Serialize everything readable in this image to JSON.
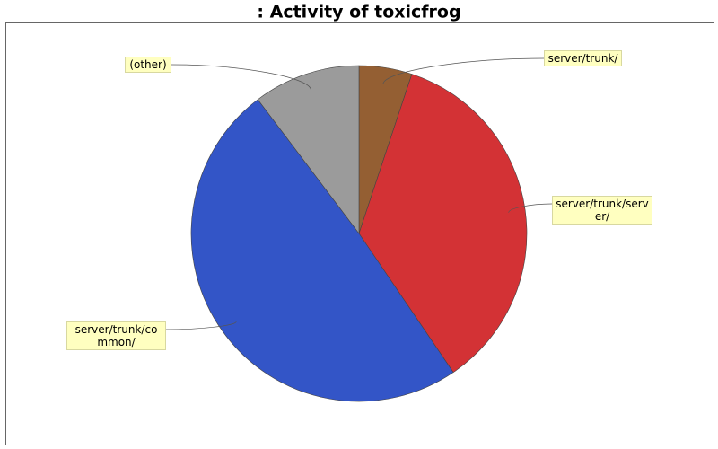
{
  "chart_data": {
    "type": "pie",
    "title": ": Activity of toxicfrog",
    "categories": [
      "server/trunk/",
      "server/trunk/server/",
      "server/trunk/common/",
      "(other)"
    ],
    "values": [
      5.1,
      35.4,
      49.2,
      10.3
    ],
    "colors": [
      "#945f33",
      "#d33235",
      "#3355c7",
      "#9b9b9b"
    ]
  }
}
